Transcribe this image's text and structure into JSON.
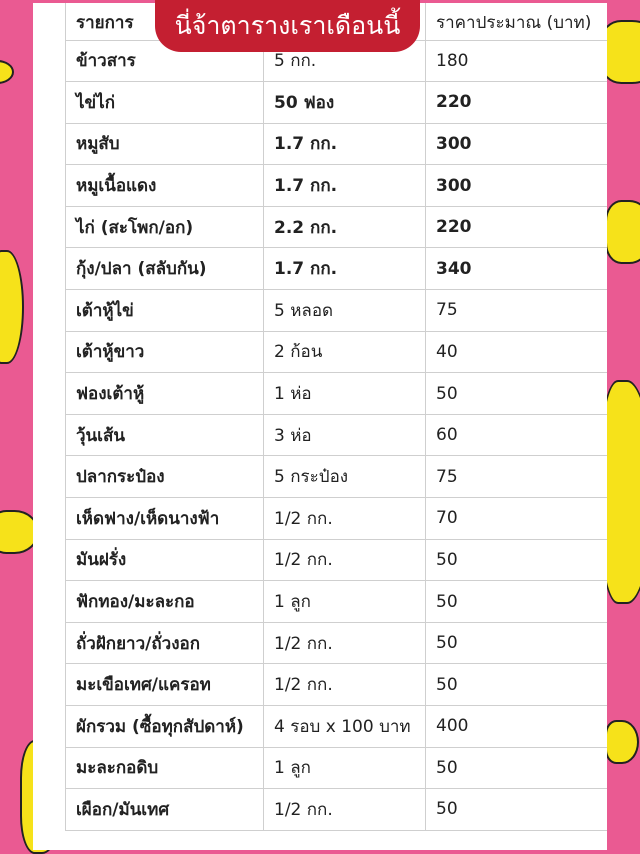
{
  "title": "นี่จ้าตารางเราเดือนนี้",
  "colors": {
    "background": "#ea5a92",
    "title_pill": "#c41f31",
    "decoration": "#f6e21a"
  },
  "decorations": [
    "banana-icon"
  ],
  "table": {
    "headers": [
      "รายการ",
      "",
      "ราคาประมาณ (บาท)"
    ],
    "rows": [
      {
        "item": "ข้าวสาร",
        "qty": "5 กก.",
        "price": "180",
        "bold": false
      },
      {
        "item": "ไข่ไก่",
        "qty": "50 ฟอง",
        "price": "220",
        "bold": true
      },
      {
        "item": "หมูสับ",
        "qty": "1.7 กก.",
        "price": "300",
        "bold": true
      },
      {
        "item": "หมูเนื้อแดง",
        "qty": "1.7 กก.",
        "price": "300",
        "bold": true
      },
      {
        "item": "ไก่ (สะโพก/อก)",
        "qty": "2.2 กก.",
        "price": "220",
        "bold": true
      },
      {
        "item": "กุ้ง/ปลา (สลับกัน)",
        "qty": "1.7 กก.",
        "price": "340",
        "bold": true
      },
      {
        "item": "เต้าหู้ไข่",
        "qty": "5 หลอด",
        "price": "75",
        "bold": false
      },
      {
        "item": "เต้าหู้ขาว",
        "qty": "2 ก้อน",
        "price": "40",
        "bold": false
      },
      {
        "item": "ฟองเต้าหู้",
        "qty": "1 ห่อ",
        "price": "50",
        "bold": false
      },
      {
        "item": "วุ้นเส้น",
        "qty": "3 ห่อ",
        "price": "60",
        "bold": false
      },
      {
        "item": "ปลากระป๋อง",
        "qty": "5 กระป๋อง",
        "price": "75",
        "bold": false
      },
      {
        "item": "เห็ดฟาง/เห็ดนางฟ้า",
        "qty": "1/2 กก.",
        "price": "70",
        "bold": false
      },
      {
        "item": "มันฝรั่ง",
        "qty": "1/2 กก.",
        "price": "50",
        "bold": false
      },
      {
        "item": "ฟักทอง/มะละกอ",
        "qty": "1 ลูก",
        "price": "50",
        "bold": false
      },
      {
        "item": "ถั่วฝักยาว/ถั่วงอก",
        "qty": "1/2 กก.",
        "price": "50",
        "bold": false
      },
      {
        "item": "มะเขือเทศ/แครอท",
        "qty": "1/2 กก.",
        "price": "50",
        "bold": false
      },
      {
        "item": "ผักรวม (ซื้อทุกสัปดาห์)",
        "qty": "4 รอบ x 100 บาท",
        "price": "400",
        "bold": false
      },
      {
        "item": "มะละกอดิบ",
        "qty": "1 ลูก",
        "price": "50",
        "bold": false
      },
      {
        "item": "เผือก/มันเทศ",
        "qty": "1/2 กก.",
        "price": "50",
        "bold": false
      }
    ]
  }
}
